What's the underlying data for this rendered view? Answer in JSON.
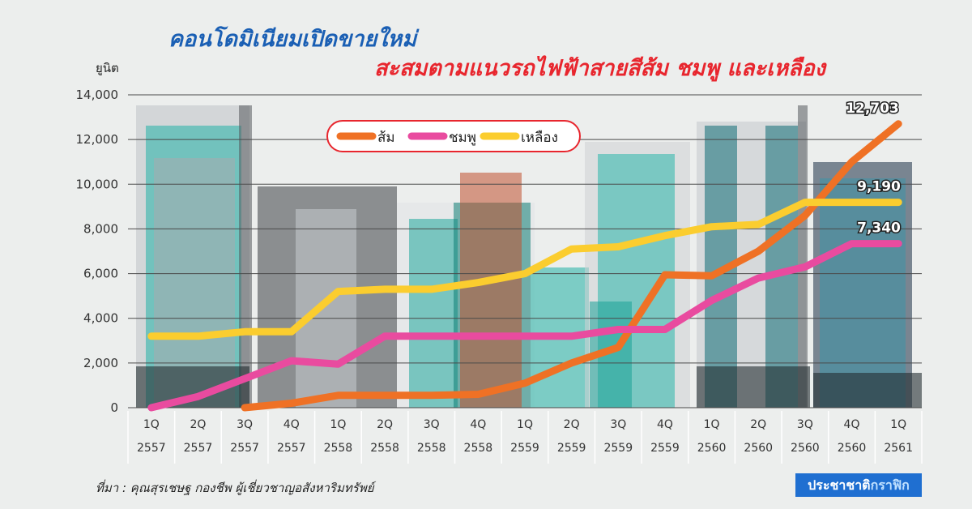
{
  "title_line1": "คอนโดมิเนียมเปิดขายใหม่",
  "title_line2": "สะสมตามแนวรถไฟฟ้าสายสีส้ม ชมพู และเหลือง",
  "source_text": "ที่มา : คุณสุรเชษฐ กองชีพ ผู้เชี่ยวชาญอสังหาริมทรัพย์",
  "brand": {
    "part1": "ประชาชาติ",
    "part2": "กราฟิก"
  },
  "chart_data": {
    "type": "line",
    "ylabel": "ยูนิต",
    "ylim": [
      0,
      14000
    ],
    "yticks": [
      0,
      2000,
      4000,
      6000,
      8000,
      10000,
      12000,
      14000
    ],
    "ytick_labels": [
      "0",
      "2,000",
      "4,000",
      "6,000",
      "8,000",
      "10,000",
      "12,000",
      "14,000"
    ],
    "grid": true,
    "legend_position": "top-left",
    "categories": [
      [
        "1Q",
        "2557"
      ],
      [
        "2Q",
        "2557"
      ],
      [
        "3Q",
        "2557"
      ],
      [
        "4Q",
        "2557"
      ],
      [
        "1Q",
        "2558"
      ],
      [
        "2Q",
        "2558"
      ],
      [
        "3Q",
        "2558"
      ],
      [
        "4Q",
        "2558"
      ],
      [
        "1Q",
        "2559"
      ],
      [
        "2Q",
        "2559"
      ],
      [
        "3Q",
        "2559"
      ],
      [
        "4Q",
        "2559"
      ],
      [
        "1Q",
        "2560"
      ],
      [
        "2Q",
        "2560"
      ],
      [
        "3Q",
        "2560"
      ],
      [
        "4Q",
        "2560"
      ],
      [
        "1Q",
        "2561"
      ]
    ],
    "series": [
      {
        "name": "ส้ม",
        "color": "#ef7125",
        "values": [
          null,
          null,
          0,
          200,
          550,
          550,
          550,
          600,
          1100,
          2000,
          2700,
          5950,
          5900,
          7000,
          8600,
          11000,
          12703
        ]
      },
      {
        "name": "ชมพู",
        "color": "#e94b9f",
        "values": [
          0,
          500,
          1300,
          2100,
          1950,
          3200,
          3200,
          3200,
          3200,
          3200,
          3500,
          3500,
          4800,
          5800,
          6300,
          7340,
          7340
        ]
      },
      {
        "name": "เหลือง",
        "color": "#fbcd2f",
        "values": [
          3200,
          3200,
          3400,
          3400,
          5200,
          5300,
          5300,
          5600,
          6000,
          7100,
          7200,
          7700,
          8100,
          8200,
          9190,
          9190,
          9190
        ]
      }
    ],
    "annotations": [
      "12,703",
      "9,190",
      "7,340"
    ]
  }
}
